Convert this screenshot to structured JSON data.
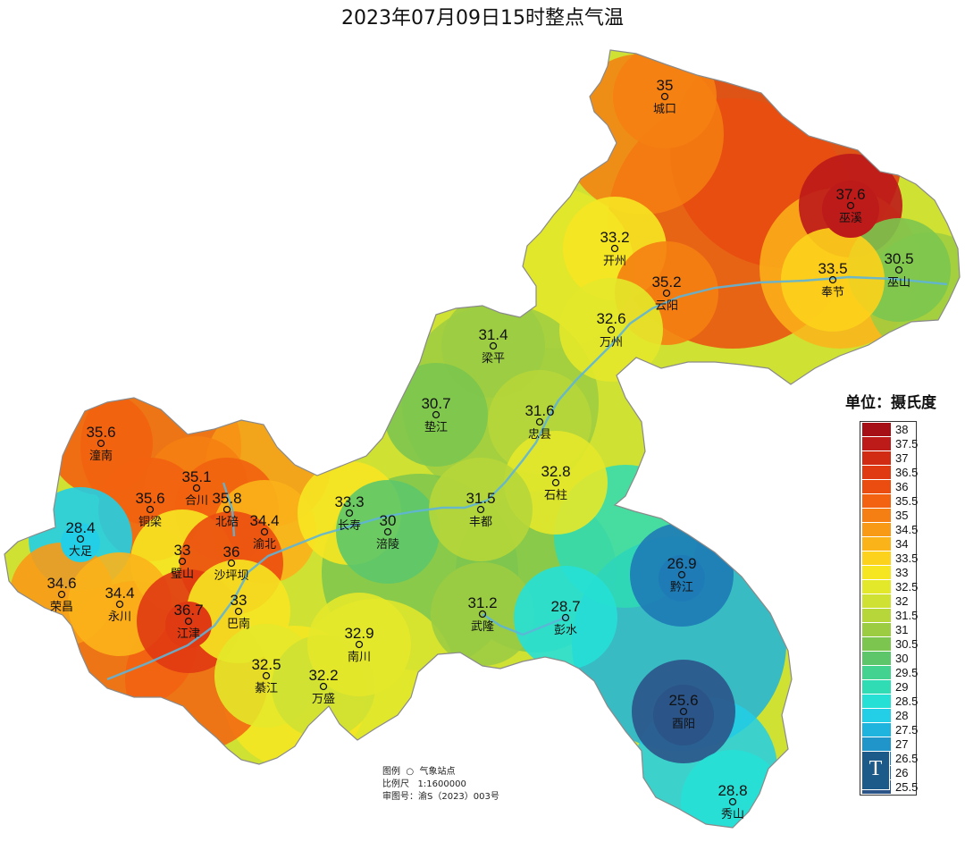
{
  "title": "2023年07月09日15时整点气温",
  "legend": {
    "unit_label": "单位：摄氏度",
    "bins": [
      {
        "label": "38",
        "color": "#a50f15"
      },
      {
        "label": "37.5",
        "color": "#bd1a1a"
      },
      {
        "label": "37",
        "color": "#d22b14"
      },
      {
        "label": "36.5",
        "color": "#e03a12"
      },
      {
        "label": "36",
        "color": "#eb4d10"
      },
      {
        "label": "35.5",
        "color": "#f26210"
      },
      {
        "label": "35",
        "color": "#f57f12"
      },
      {
        "label": "34.5",
        "color": "#f89a16"
      },
      {
        "label": "34",
        "color": "#fbb31a"
      },
      {
        "label": "33.5",
        "color": "#fdd21c"
      },
      {
        "label": "33",
        "color": "#f6e622"
      },
      {
        "label": "32.5",
        "color": "#e4e82a"
      },
      {
        "label": "32",
        "color": "#cfe133"
      },
      {
        "label": "31.5",
        "color": "#b6d63a"
      },
      {
        "label": "31",
        "color": "#9ccc42"
      },
      {
        "label": "30.5",
        "color": "#7cc54f"
      },
      {
        "label": "30",
        "color": "#5ec66a"
      },
      {
        "label": "29.5",
        "color": "#43d28f"
      },
      {
        "label": "29",
        "color": "#2fdcb4"
      },
      {
        "label": "28.5",
        "color": "#26e0d6"
      },
      {
        "label": "28",
        "color": "#22cfe6"
      },
      {
        "label": "27.5",
        "color": "#1fb4de"
      },
      {
        "label": "27",
        "color": "#1f95c9"
      },
      {
        "label": "26.5",
        "color": "#1e7bb6"
      },
      {
        "label": "26",
        "color": "#23669f"
      },
      {
        "label": "25.5",
        "color": "#2b5489"
      }
    ]
  },
  "info": {
    "legend_line": "图例  ○  气象站点",
    "scale_line": "比例尺   1:1600000",
    "approval_line": "审图号：渝S（2023）003号"
  },
  "logo_text": "T",
  "stations": [
    {
      "name": "城口",
      "value": "35",
      "temp": 35
    },
    {
      "name": "巫溪",
      "value": "37.6",
      "temp": 37.6
    },
    {
      "name": "开州",
      "value": "33.2",
      "temp": 33.2
    },
    {
      "name": "巫山",
      "value": "30.5",
      "temp": 30.5
    },
    {
      "name": "奉节",
      "value": "33.5",
      "temp": 33.5
    },
    {
      "name": "云阳",
      "value": "35.2",
      "temp": 35.2
    },
    {
      "name": "万州",
      "value": "32.6",
      "temp": 32.6
    },
    {
      "name": "梁平",
      "value": "31.4",
      "temp": 31.4
    },
    {
      "name": "垫江",
      "value": "30.7",
      "temp": 30.7
    },
    {
      "name": "忠县",
      "value": "31.6",
      "temp": 31.6
    },
    {
      "name": "石柱",
      "value": "32.8",
      "temp": 32.8
    },
    {
      "name": "潼南",
      "value": "35.6",
      "temp": 35.6
    },
    {
      "name": "合川",
      "value": "35.1",
      "temp": 35.1
    },
    {
      "name": "铜梁",
      "value": "35.6",
      "temp": 35.6
    },
    {
      "name": "北碚",
      "value": "35.8",
      "temp": 35.8
    },
    {
      "name": "渝北",
      "value": "34.4",
      "temp": 34.4
    },
    {
      "name": "长寿",
      "value": "33.3",
      "temp": 33.3
    },
    {
      "name": "涪陵",
      "value": "30",
      "temp": 30
    },
    {
      "name": "丰都",
      "value": "31.5",
      "temp": 31.5
    },
    {
      "name": "大足",
      "value": "28.4",
      "temp": 28.4
    },
    {
      "name": "璧山",
      "value": "33",
      "temp": 33
    },
    {
      "name": "沙坪坝",
      "value": "36",
      "temp": 36
    },
    {
      "name": "荣昌",
      "value": "34.6",
      "temp": 34.6
    },
    {
      "name": "永川",
      "value": "34.4",
      "temp": 34.4
    },
    {
      "name": "江津",
      "value": "36.7",
      "temp": 36.7
    },
    {
      "name": "巴南",
      "value": "33",
      "temp": 33
    },
    {
      "name": "綦江",
      "value": "32.5",
      "temp": 32.5
    },
    {
      "name": "万盛",
      "value": "32.2",
      "temp": 32.2
    },
    {
      "name": "南川",
      "value": "32.9",
      "temp": 32.9
    },
    {
      "name": "武隆",
      "value": "31.2",
      "temp": 31.2
    },
    {
      "name": "彭水",
      "value": "28.7",
      "temp": 28.7
    },
    {
      "name": "黔江",
      "value": "26.9",
      "temp": 26.9
    },
    {
      "name": "酉阳",
      "value": "25.6",
      "temp": 25.6
    },
    {
      "name": "秀山",
      "value": "28.8",
      "temp": 28.8
    }
  ]
}
